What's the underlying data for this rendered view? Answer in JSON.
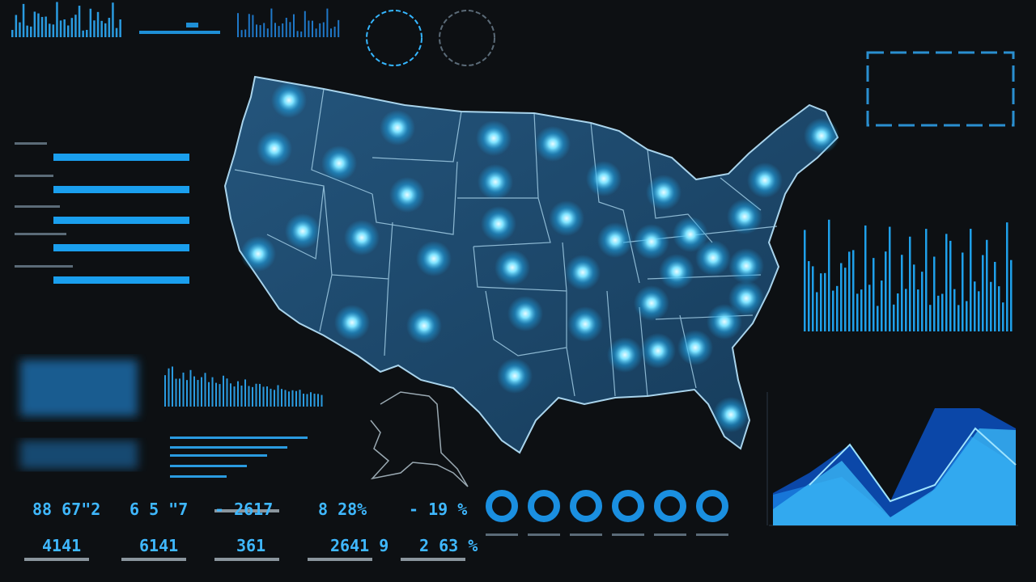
{
  "readouts": {
    "top": [
      "88 67\"2",
      "6 5 \"7",
      "- 2617",
      "8 28%",
      "- 19 %"
    ],
    "bottom": [
      "4141",
      "6141",
      "361",
      "2641 9",
      "2 63 %"
    ]
  }
}
